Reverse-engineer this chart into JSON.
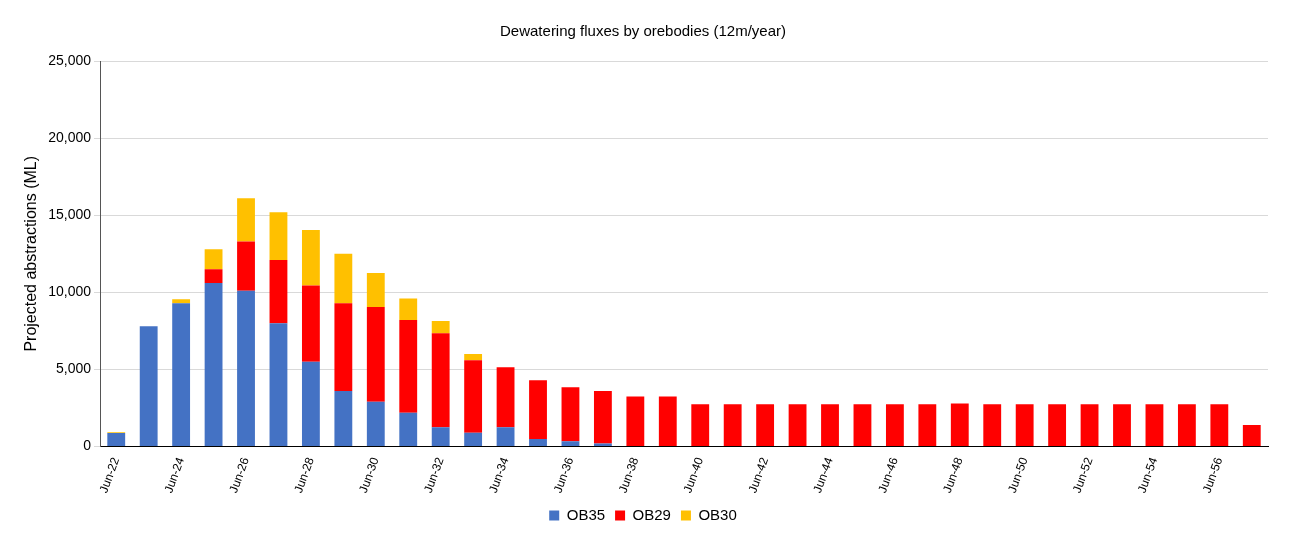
{
  "chart_data": {
    "type": "bar",
    "title": "Dewatering fluxes by orebodies (12m/year)",
    "ylabel": "Projected abstractions (ML)",
    "categories": [
      "Jun-22",
      null,
      "Jun-24",
      null,
      "Jun-26",
      null,
      "Jun-28",
      null,
      "Jun-30",
      null,
      "Jun-32",
      null,
      "Jun-34",
      null,
      "Jun-36",
      null,
      "Jun-38",
      null,
      "Jun-40",
      null,
      "Jun-42",
      null,
      "Jun-44",
      null,
      "Jun-46",
      null,
      "Jun-48",
      null,
      "Jun-50",
      null,
      "Jun-52",
      null,
      "Jun-54",
      null,
      "Jun-56",
      null
    ],
    "stacked": true,
    "series": [
      {
        "name": "OB35",
        "color": "#4472c4",
        "values": [
          880,
          7800,
          9300,
          10600,
          10100,
          8000,
          5500,
          3600,
          2900,
          2200,
          1250,
          900,
          1250,
          500,
          350,
          200,
          null,
          null,
          null,
          null,
          null,
          null,
          null,
          null,
          null,
          null,
          null,
          null,
          null,
          null,
          null,
          null,
          null,
          null,
          null,
          null
        ]
      },
      {
        "name": "OB29",
        "color": "#ff0000",
        "values": [
          null,
          null,
          null,
          900,
          3200,
          4100,
          4950,
          5700,
          6150,
          6000,
          6100,
          4700,
          3900,
          3800,
          3500,
          3400,
          3250,
          3250,
          2750,
          2750,
          2750,
          2750,
          2750,
          2750,
          2750,
          2750,
          2800,
          2750,
          2750,
          2750,
          2750,
          2750,
          2750,
          2750,
          2750,
          1400
        ]
      },
      {
        "name": "OB30",
        "color": "#ffc000",
        "values": [
          50,
          null,
          250,
          1300,
          2800,
          3100,
          3600,
          3200,
          2200,
          1400,
          800,
          400,
          null,
          null,
          null,
          null,
          null,
          null,
          null,
          null,
          null,
          null,
          null,
          null,
          null,
          null,
          null,
          null,
          null,
          null,
          null,
          null,
          null,
          null,
          null,
          null
        ]
      }
    ],
    "ylim": [
      0,
      25000
    ],
    "yticks": [
      {
        "value": 0,
        "label": "0"
      },
      {
        "value": 5000,
        "label": "5,000"
      },
      {
        "value": 10000,
        "label": "10,000"
      },
      {
        "value": 15000,
        "label": "15,000"
      },
      {
        "value": 20000,
        "label": "20,000"
      },
      {
        "value": 25000,
        "label": "25,000"
      }
    ],
    "grid": "y",
    "legend": "bottom"
  }
}
